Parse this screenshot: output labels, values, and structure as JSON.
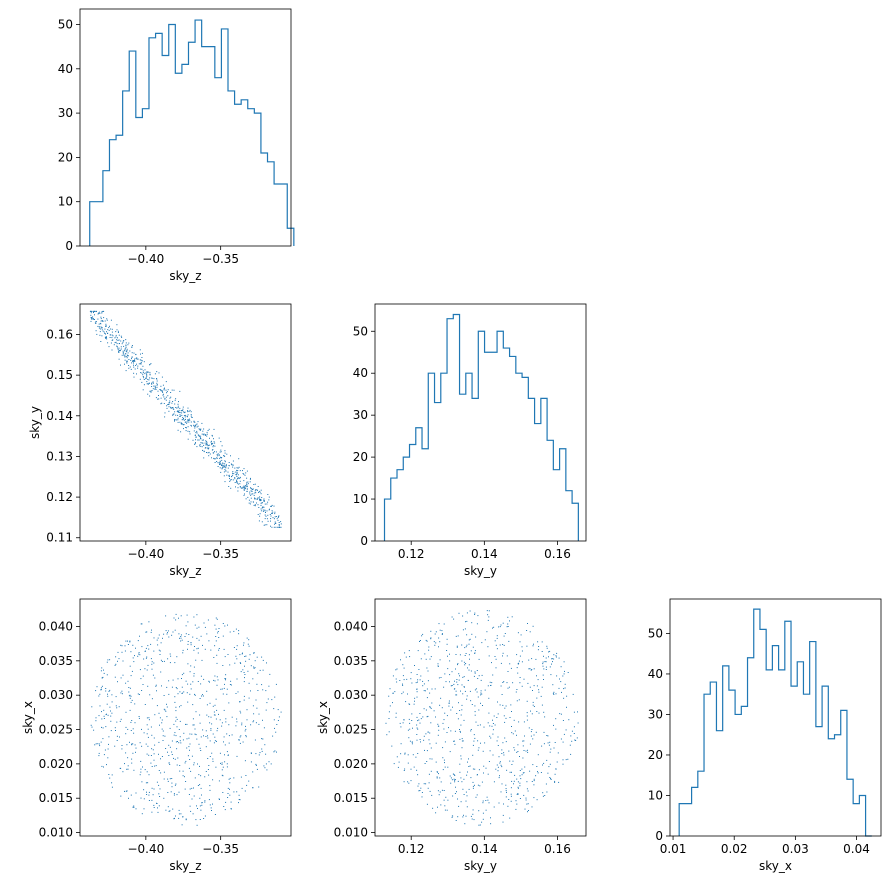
{
  "chart_data": [
    {
      "type": "histogram",
      "panel": "row1-col1",
      "xlabel": "sky_z",
      "ylabel": "",
      "xlim": [
        -0.444,
        -0.303
      ],
      "ylim": [
        0,
        53.5
      ],
      "xticks": [
        -0.4,
        -0.35
      ],
      "xtick_labels": [
        "−0.40",
        "−0.35"
      ],
      "yticks": [
        0,
        10,
        20,
        30,
        40,
        50
      ],
      "ytick_labels": [
        "0",
        "10",
        "20",
        "30",
        "40",
        "50"
      ],
      "bin_start": -0.4375,
      "bin_width": 0.0044,
      "counts": [
        10,
        10,
        17,
        24,
        25,
        35,
        44,
        29,
        31,
        47,
        48,
        43,
        50,
        39,
        41,
        46,
        51,
        45,
        45,
        38,
        49,
        35,
        32,
        33,
        31,
        30,
        21,
        19,
        14,
        14,
        4
      ],
      "color": "#1f77b4"
    },
    {
      "type": "scatter",
      "panel": "row2-col1",
      "xlabel": "sky_z",
      "ylabel": "sky_y",
      "xlim": [
        -0.444,
        -0.303
      ],
      "ylim": [
        0.1092,
        0.1675
      ],
      "xticks": [
        -0.4,
        -0.35
      ],
      "xtick_labels": [
        "−0.40",
        "−0.35"
      ],
      "yticks": [
        0.11,
        0.12,
        0.13,
        0.14,
        0.15,
        0.16
      ],
      "ytick_labels": [
        "0.11",
        "0.12",
        "0.13",
        "0.14",
        "0.15",
        "0.16"
      ],
      "x_range": [
        -0.4375,
        -0.3097
      ],
      "y_range": [
        0.1127,
        0.1658
      ],
      "n_points": 900,
      "color": "#1f77b4"
    },
    {
      "type": "histogram",
      "panel": "row2-col2",
      "xlabel": "sky_y",
      "ylabel": "",
      "xlim": [
        0.1101,
        0.1678
      ],
      "ylim": [
        0,
        56.5
      ],
      "xticks": [
        0.12,
        0.14,
        0.16
      ],
      "xtick_labels": [
        "0.12",
        "0.14",
        "0.16"
      ],
      "yticks": [
        0,
        10,
        20,
        30,
        40,
        50
      ],
      "ytick_labels": [
        "0",
        "10",
        "20",
        "30",
        "40",
        "50"
      ],
      "bin_start": 0.1127,
      "bin_width": 0.00171,
      "counts": [
        10,
        15,
        17,
        20,
        23,
        27,
        22,
        40,
        33,
        40,
        53,
        54,
        35,
        40,
        34,
        50,
        45,
        45,
        50,
        46,
        44,
        40,
        39,
        34,
        28,
        34,
        24,
        17,
        22,
        12,
        9
      ],
      "color": "#1f77b4"
    },
    {
      "type": "scatter",
      "panel": "row3-col1",
      "xlabel": "sky_z",
      "ylabel": "sky_x",
      "xlim": [
        -0.444,
        -0.303
      ],
      "ylim": [
        0.0095,
        0.044
      ],
      "xticks": [
        -0.4,
        -0.35
      ],
      "xtick_labels": [
        "−0.40",
        "−0.35"
      ],
      "yticks": [
        0.01,
        0.015,
        0.02,
        0.025,
        0.03,
        0.035,
        0.04
      ],
      "ytick_labels": [
        "0.010",
        "0.015",
        "0.020",
        "0.025",
        "0.030",
        "0.035",
        "0.040"
      ],
      "x_range": [
        -0.4375,
        -0.3097
      ],
      "y_range": [
        0.011,
        0.0425
      ],
      "n_points": 900,
      "color": "#1f77b4"
    },
    {
      "type": "scatter",
      "panel": "row3-col2",
      "xlabel": "sky_y",
      "ylabel": "sky_x",
      "xlim": [
        0.1101,
        0.1678
      ],
      "ylim": [
        0.0095,
        0.044
      ],
      "xticks": [
        0.12,
        0.14,
        0.16
      ],
      "xtick_labels": [
        "0.12",
        "0.14",
        "0.16"
      ],
      "yticks": [
        0.01,
        0.015,
        0.02,
        0.025,
        0.03,
        0.035,
        0.04
      ],
      "ytick_labels": [
        "0.010",
        "0.015",
        "0.020",
        "0.025",
        "0.030",
        "0.035",
        "0.040"
      ],
      "x_range": [
        0.1127,
        0.1658
      ],
      "y_range": [
        0.011,
        0.0425
      ],
      "n_points": 900,
      "color": "#1f77b4"
    },
    {
      "type": "histogram",
      "panel": "row3-col3",
      "xlabel": "sky_x",
      "ylabel": "",
      "xlim": [
        0.0095,
        0.044
      ],
      "ylim": [
        0,
        58.5
      ],
      "xticks": [
        0.01,
        0.02,
        0.03,
        0.04
      ],
      "xtick_labels": [
        "0.01",
        "0.02",
        "0.03",
        "0.04"
      ],
      "yticks": [
        0,
        10,
        20,
        30,
        40,
        50
      ],
      "ytick_labels": [
        "0",
        "10",
        "20",
        "30",
        "40",
        "50"
      ],
      "bin_start": 0.011,
      "bin_width": 0.001016,
      "counts": [
        8,
        8,
        12,
        16,
        35,
        38,
        26,
        42,
        36,
        30,
        32,
        44,
        56,
        51,
        41,
        47,
        41,
        53,
        37,
        43,
        35,
        48,
        27,
        37,
        24,
        25,
        31,
        14,
        8,
        10,
        0
      ],
      "color": "#1f77b4"
    }
  ]
}
